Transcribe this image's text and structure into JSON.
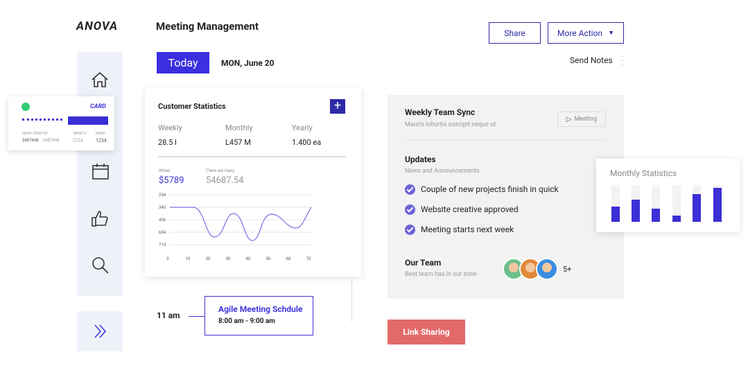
{
  "brand": "ANOVA",
  "header": {
    "title": "Meeting Management",
    "share": "Share",
    "more_action": "More Action",
    "today": "Today",
    "date": "MON, June 20",
    "send_notes": "Send Notes"
  },
  "card": {
    "label": "CARD",
    "columns": [
      {
        "head": "MANY DESKTOP",
        "values": [
          "5487648",
          "5487648"
        ]
      },
      {
        "head": "MANY 0",
        "values": [
          "1234"
        ]
      },
      {
        "head": "MARY",
        "values": [
          "1234"
        ]
      }
    ]
  },
  "customer_statistics": {
    "title": "Customer Statistics",
    "stats": [
      {
        "label": "Weekly",
        "value": "28.5 l"
      },
      {
        "label": "Monthly",
        "value": "L457 M"
      },
      {
        "label": "Yearly",
        "value": "1.400 ea"
      }
    ],
    "chart": {
      "label_1": "Wheel",
      "value_1": "$5789",
      "label_2": "There are many",
      "value_2": "54687.54",
      "yticks": [
        "254",
        "345",
        "456",
        "654",
        "713"
      ],
      "xticks": [
        "0",
        "10",
        "20",
        "30",
        "40",
        "50",
        "60",
        "70"
      ]
    }
  },
  "schedule": {
    "time": "11 am",
    "title": "Agile Meeting Schdule",
    "range": "8:00 am - 9:00 am"
  },
  "team_sync": {
    "title": "Weekly Team Sync",
    "subtitle": "Mauris lobortis suscipit neque ut.",
    "tag": "Meeting",
    "updates_title": "Updates",
    "updates_subtitle": "News and Announcements",
    "updates": [
      "Couple of new projects finish in quick",
      "Website creative approved",
      "Meeting starts next week"
    ],
    "team_title": "Our Team",
    "team_subtitle": "Best team has in our zone",
    "team_more": "5+"
  },
  "monthly_statistics": {
    "title": "Monthly Statistics"
  },
  "link_sharing": "Link Sharing"
}
